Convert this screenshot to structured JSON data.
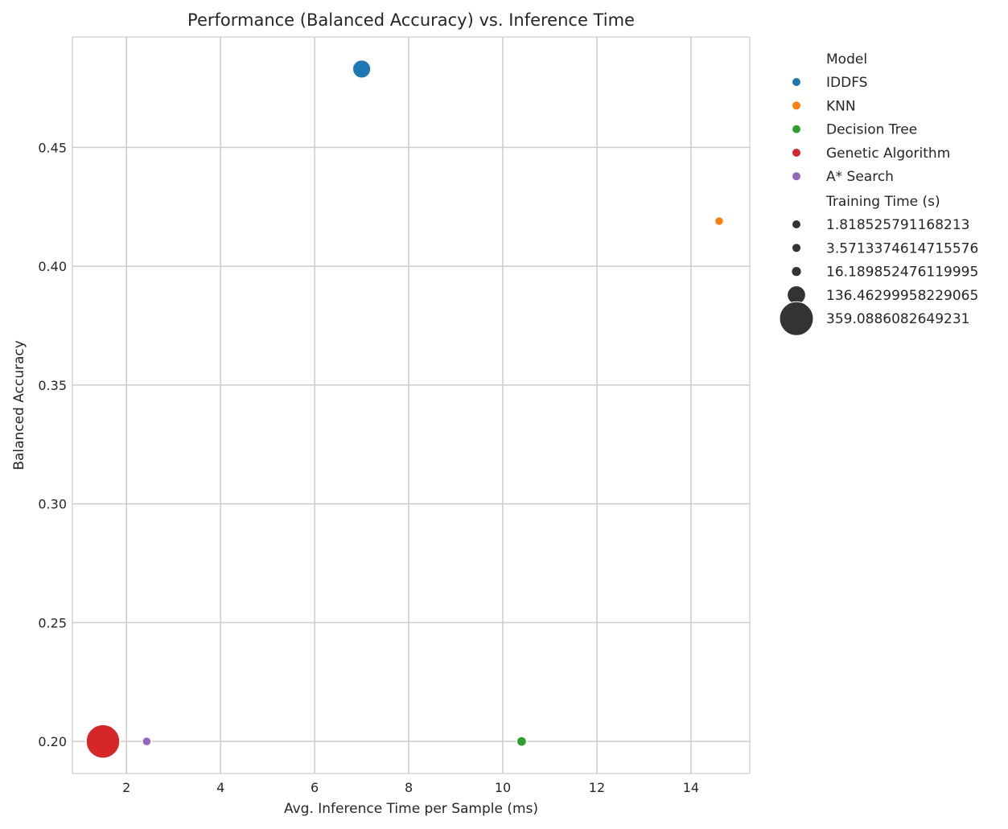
{
  "chart_data": {
    "type": "scatter",
    "title": "Performance (Balanced Accuracy) vs. Inference Time",
    "xlabel": "Avg. Inference Time per Sample (ms)",
    "ylabel": "Balanced Accuracy",
    "xlim": [
      0.85,
      15.25
    ],
    "ylim": [
      0.1865,
      0.4965
    ],
    "xticks": [
      2,
      4,
      6,
      8,
      10,
      12,
      14
    ],
    "yticks": [
      0.2,
      0.25,
      0.3,
      0.35,
      0.4,
      0.45
    ],
    "xtick_labels": [
      "2",
      "4",
      "6",
      "8",
      "10",
      "12",
      "14"
    ],
    "ytick_labels": [
      "0.20",
      "0.25",
      "0.30",
      "0.35",
      "0.40",
      "0.45"
    ],
    "grid": true,
    "legend_position": "outside-right-top",
    "hue_title": "Model",
    "size_title": "Training Time (s)",
    "points": [
      {
        "model": "IDDFS",
        "x": 7.0,
        "y": 0.483,
        "size": 136.46299958229065,
        "color": "#1f77b4"
      },
      {
        "model": "KNN",
        "x": 14.6,
        "y": 0.419,
        "size": 1.818525791168213,
        "color": "#ff7f0e"
      },
      {
        "model": "Decision Tree",
        "x": 10.4,
        "y": 0.2,
        "size": 16.189852476119995,
        "color": "#2ca02c"
      },
      {
        "model": "Genetic Algorithm",
        "x": 1.5,
        "y": 0.2,
        "size": 359.0886082649231,
        "color": "#d62728"
      },
      {
        "model": "A* Search",
        "x": 2.43,
        "y": 0.2,
        "size": 3.5713374614715576,
        "color": "#9467bd"
      }
    ],
    "hue_legend": [
      {
        "label": "IDDFS",
        "color": "#1f77b4"
      },
      {
        "label": "KNN",
        "color": "#ff7f0e"
      },
      {
        "label": "Decision Tree",
        "color": "#2ca02c"
      },
      {
        "label": "Genetic Algorithm",
        "color": "#d62728"
      },
      {
        "label": "A* Search",
        "color": "#9467bd"
      }
    ],
    "size_legend": [
      {
        "label": "1.818525791168213",
        "value": 1.818525791168213
      },
      {
        "label": "3.5713374614715576",
        "value": 3.5713374614715576
      },
      {
        "label": "16.189852476119995",
        "value": 16.189852476119995
      },
      {
        "label": "136.46299958229065",
        "value": 136.46299958229065
      },
      {
        "label": "359.0886082649231",
        "value": 359.0886082649231
      }
    ],
    "size_legend_color": "#333333"
  }
}
